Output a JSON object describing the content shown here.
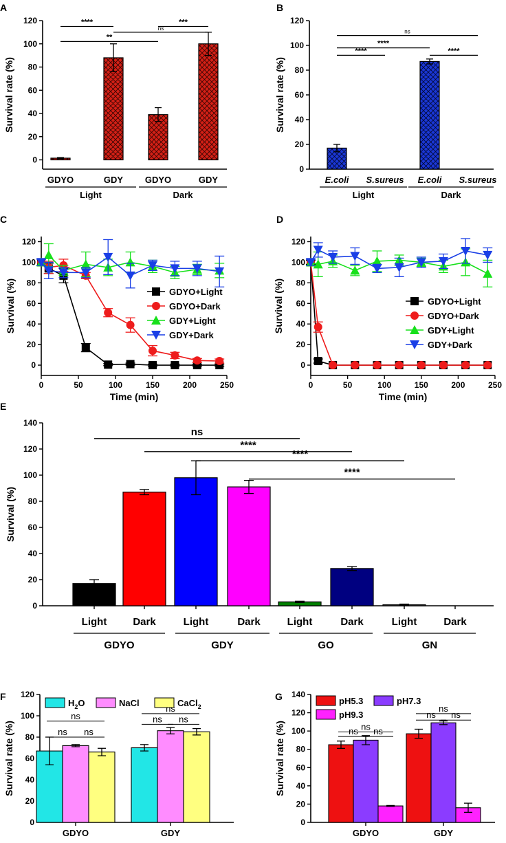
{
  "chart_data": [
    {
      "panel": "A",
      "type": "bar",
      "ylabel": "Survival rate (%)",
      "ylim": [
        -8,
        120
      ],
      "yticks": [
        0,
        20,
        40,
        60,
        80,
        100,
        120
      ],
      "categories": [
        "GDYO",
        "GDY",
        "GDYO",
        "GDY"
      ],
      "groups": [
        "Light",
        "Dark"
      ],
      "values": [
        1.5,
        88,
        39,
        100
      ],
      "errors": [
        0.5,
        12,
        6,
        10
      ],
      "color": "#d42016",
      "hatch": "crosshatch",
      "significance": [
        {
          "from": 0,
          "to": 1,
          "label": "****",
          "y": 115
        },
        {
          "from": 1,
          "to": 3,
          "label": "ns",
          "y": 110
        },
        {
          "from": 2,
          "to": 3,
          "label": "***",
          "y": 115
        },
        {
          "from": 0,
          "to": 2,
          "label": "**",
          "y": 102
        }
      ]
    },
    {
      "panel": "B",
      "type": "bar",
      "ylabel": "Survival rate (%)",
      "ylim": [
        0,
        120
      ],
      "yticks": [
        0,
        20,
        40,
        60,
        80,
        100,
        120
      ],
      "categories": [
        "E.coli",
        "S.sureus",
        "E.coli",
        "S.sureus"
      ],
      "groups": [
        "Light",
        "Dark"
      ],
      "values": [
        17,
        0,
        87,
        0
      ],
      "errors": [
        3,
        0,
        2,
        0
      ],
      "color": "#1a37d6",
      "hatch": "crosshatch",
      "significance": [
        {
          "from": 0,
          "to": 3,
          "label": "ns",
          "y": 108
        },
        {
          "from": 0,
          "to": 2,
          "label": "****",
          "y": 98
        },
        {
          "from": 0,
          "to": 1,
          "label": "****",
          "y": 92
        },
        {
          "from": 2,
          "to": 3,
          "label": "****",
          "y": 92
        }
      ]
    },
    {
      "panel": "C",
      "type": "line",
      "xlabel": "Time (min)",
      "ylabel": "Survival (%)",
      "xlim": [
        0,
        250
      ],
      "ylim": [
        -10,
        125
      ],
      "xticks": [
        0,
        50,
        100,
        150,
        200,
        250
      ],
      "yticks": [
        0,
        20,
        40,
        60,
        80,
        100,
        120
      ],
      "legend_position": "right",
      "series": [
        {
          "name": "GDYO+Light",
          "color": "#000000",
          "marker": "square",
          "x": [
            0,
            10,
            30,
            60,
            90,
            120,
            150,
            180,
            210,
            240
          ],
          "values": [
            100,
            94,
            87,
            17,
            0.5,
            1,
            0,
            0,
            0,
            0
          ],
          "errors": [
            3,
            5,
            7,
            4,
            1,
            1,
            1,
            1,
            1,
            1
          ]
        },
        {
          "name": "GDYO+Dark",
          "color": "#ee1c1c",
          "marker": "circle",
          "x": [
            0,
            10,
            30,
            60,
            90,
            120,
            150,
            180,
            210,
            240
          ],
          "values": [
            100,
            95,
            97,
            87,
            51,
            39,
            14,
            9.5,
            4.5,
            4
          ],
          "errors": [
            3,
            6,
            6,
            3,
            4,
            7,
            5,
            3,
            2,
            2
          ]
        },
        {
          "name": "GDY+Light",
          "color": "#17e01b",
          "marker": "triangle-up",
          "x": [
            0,
            10,
            30,
            60,
            90,
            120,
            150,
            180,
            210,
            240
          ],
          "values": [
            100,
            107,
            92,
            98,
            95,
            100,
            96,
            90,
            93,
            92
          ],
          "errors": [
            3,
            11,
            5,
            12,
            8,
            10,
            6,
            6,
            5,
            7
          ]
        },
        {
          "name": "GDY+Dark",
          "color": "#1a3fe6",
          "marker": "triangle-down",
          "x": [
            0,
            10,
            30,
            60,
            90,
            120,
            150,
            180,
            210,
            240
          ],
          "values": [
            100,
            92,
            90,
            90,
            105,
            87,
            97,
            94,
            94,
            91
          ],
          "errors": [
            3,
            8,
            5,
            5,
            17,
            12,
            5,
            7,
            7,
            15
          ]
        }
      ]
    },
    {
      "panel": "D",
      "type": "line",
      "xlabel": "Time (min)",
      "ylabel": "Survival (%)",
      "xlim": [
        0,
        250
      ],
      "ylim": [
        -10,
        125
      ],
      "xticks": [
        0,
        50,
        100,
        150,
        200,
        250
      ],
      "yticks": [
        0,
        20,
        40,
        60,
        80,
        100,
        120
      ],
      "legend_position": "right",
      "series": [
        {
          "name": "GDYO+Light",
          "color": "#000000",
          "marker": "square",
          "x": [
            0,
            10,
            30,
            60,
            90,
            120,
            150,
            180,
            210,
            240
          ],
          "values": [
            100,
            4,
            0,
            0,
            0,
            0,
            0,
            0,
            0,
            0
          ],
          "errors": [
            2,
            2,
            0,
            0,
            0,
            0,
            0,
            0,
            0,
            0
          ]
        },
        {
          "name": "GDYO+Dark",
          "color": "#ee1c1c",
          "marker": "circle",
          "x": [
            0,
            10,
            30,
            60,
            90,
            120,
            150,
            180,
            210,
            240
          ],
          "values": [
            100,
            37,
            0,
            0,
            0,
            0,
            0,
            0,
            0,
            0
          ],
          "errors": [
            3,
            5,
            0,
            0,
            0,
            0,
            0,
            0,
            0,
            0
          ]
        },
        {
          "name": "GDY+Light",
          "color": "#17e01b",
          "marker": "triangle-up",
          "x": [
            0,
            10,
            30,
            60,
            90,
            120,
            150,
            180,
            210,
            240
          ],
          "values": [
            100,
            98,
            101,
            92,
            101,
            102,
            100,
            96,
            100,
            89
          ],
          "errors": [
            3,
            12,
            6,
            5,
            10,
            5,
            4,
            6,
            13,
            13
          ]
        },
        {
          "name": "GDY+Dark",
          "color": "#1a3fe6",
          "marker": "triangle-down",
          "x": [
            0,
            10,
            30,
            60,
            90,
            120,
            150,
            180,
            210,
            240
          ],
          "values": [
            100,
            112,
            105,
            106,
            94,
            95,
            100,
            101,
            111,
            107
          ],
          "errors": [
            3,
            7,
            6,
            8,
            4,
            9,
            5,
            7,
            12,
            7
          ]
        }
      ]
    },
    {
      "panel": "E",
      "type": "bar",
      "ylabel": "Survival (%)",
      "ylim": [
        0,
        140
      ],
      "yticks": [
        0,
        20,
        40,
        60,
        80,
        100,
        120,
        140
      ],
      "categories": [
        "Light",
        "Dark",
        "Light",
        "Dark",
        "Light",
        "Dark",
        "Light",
        "Dark"
      ],
      "groups": [
        "GDYO",
        "GDY",
        "GO",
        "GN"
      ],
      "values": [
        17,
        87,
        98,
        91,
        3,
        28.5,
        0.8,
        0
      ],
      "errors": [
        3,
        2,
        13,
        5,
        0.5,
        1.5,
        0.5,
        0
      ],
      "colors": [
        "#000000",
        "#ff0000",
        "#0000ff",
        "#ff00ff",
        "#007f00",
        "#000080",
        "#3a3a3a",
        "#3a3a3a"
      ],
      "significance": [
        {
          "from": 0,
          "to": 4,
          "label": "ns",
          "y": 128
        },
        {
          "from": 1,
          "to": 5,
          "label": "****",
          "y": 118
        },
        {
          "from": 2,
          "to": 6,
          "label": "****",
          "y": 111
        },
        {
          "from": 3,
          "to": 7,
          "label": "****",
          "y": 97
        }
      ]
    },
    {
      "panel": "F",
      "type": "bar",
      "ylabel": "Survival rate (%)",
      "ylim": [
        0,
        120
      ],
      "yticks": [
        0,
        20,
        40,
        60,
        80,
        100,
        120
      ],
      "categories": [
        "GDYO",
        "GDY"
      ],
      "series": [
        {
          "name": "H2O",
          "name_main": "H",
          "name_sub": "2",
          "name_end": "O",
          "color": "#22e6e6",
          "values": [
            67,
            70
          ],
          "errors": [
            13,
            3
          ]
        },
        {
          "name": "NaCl",
          "name_main": "NaCl",
          "name_sub": "",
          "name_end": "",
          "color": "#ff8cff",
          "values": [
            72,
            86
          ],
          "errors": [
            1,
            3
          ]
        },
        {
          "name": "CaCl2",
          "name_main": "CaCl",
          "name_sub": "2",
          "name_end": "",
          "color": "#ffff80",
          "values": [
            66,
            85
          ],
          "errors": [
            3.5,
            3
          ]
        }
      ],
      "significance": [
        {
          "group": 0,
          "from": 0,
          "to": 2,
          "label": "ns",
          "y": 95
        },
        {
          "group": 0,
          "from": 0,
          "to": 1,
          "label": "ns",
          "y": 80
        },
        {
          "group": 0,
          "from": 1,
          "to": 2,
          "label": "ns",
          "y": 80
        },
        {
          "group": 1,
          "from": 0,
          "to": 2,
          "label": "ns",
          "y": 102
        },
        {
          "group": 1,
          "from": 0,
          "to": 1,
          "label": "ns",
          "y": 92
        },
        {
          "group": 1,
          "from": 1,
          "to": 2,
          "label": "ns",
          "y": 92
        }
      ]
    },
    {
      "panel": "G",
      "type": "bar",
      "ylabel": "Survival rate (%)",
      "ylim": [
        0,
        140
      ],
      "yticks": [
        0,
        20,
        40,
        60,
        80,
        100,
        120,
        140
      ],
      "categories": [
        "GDYO",
        "GDY"
      ],
      "series": [
        {
          "name": "pH5.3",
          "color": "#ee1111",
          "values": [
            85,
            97
          ],
          "errors": [
            4,
            5
          ]
        },
        {
          "name": "pH7.3",
          "color": "#8b3cff",
          "values": [
            90,
            109
          ],
          "errors": [
            5,
            2
          ]
        },
        {
          "name": "pH9.3",
          "color": "#ff22ff",
          "values": [
            18,
            16
          ],
          "errors": [
            0.5,
            5
          ]
        }
      ],
      "significance": [
        {
          "group": 0,
          "from": 0,
          "to": 2,
          "label": "ns",
          "y": 99
        },
        {
          "group": 0,
          "from": 0,
          "to": 1,
          "label": "ns",
          "y": 94
        },
        {
          "group": 0,
          "from": 1,
          "to": 2,
          "label": "ns",
          "y": 94
        },
        {
          "group": 1,
          "from": 0,
          "to": 2,
          "label": "ns",
          "y": 119
        },
        {
          "group": 1,
          "from": 0,
          "to": 1,
          "label": "ns",
          "y": 112
        },
        {
          "group": 1,
          "from": 1,
          "to": 2,
          "label": "ns",
          "y": 112
        }
      ]
    }
  ]
}
